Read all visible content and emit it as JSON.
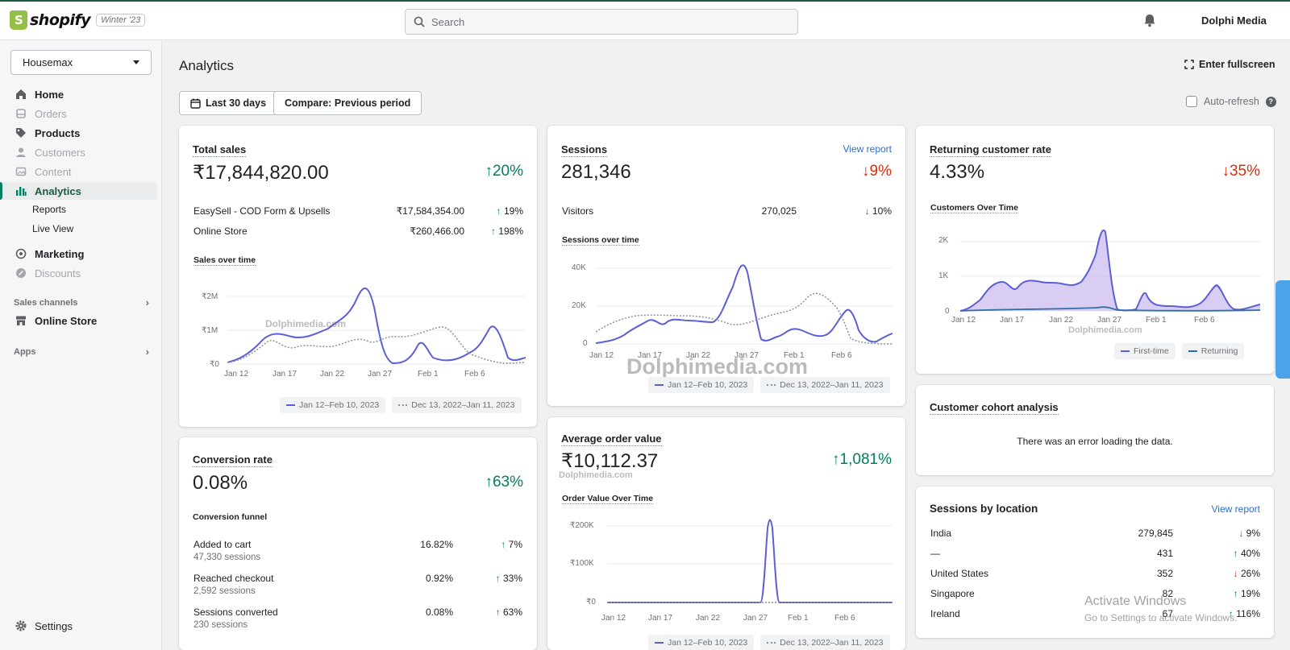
{
  "topbar": {
    "logo_text": "shopify",
    "badge": "Winter '23",
    "search_placeholder": "Search",
    "account_name": "Dolphi Media"
  },
  "sidebar": {
    "store": "Housemax",
    "items": [
      {
        "label": "Home",
        "icon": "home-icon",
        "disabled": false
      },
      {
        "label": "Orders",
        "icon": "orders-icon",
        "disabled": true
      },
      {
        "label": "Products",
        "icon": "tag-icon",
        "disabled": false
      },
      {
        "label": "Customers",
        "icon": "person-icon",
        "disabled": true
      },
      {
        "label": "Content",
        "icon": "image-icon",
        "disabled": true
      },
      {
        "label": "Analytics",
        "icon": "bar-chart-icon",
        "active": true
      }
    ],
    "analytics_sub": [
      "Reports",
      "Live View"
    ],
    "items2": [
      {
        "label": "Marketing",
        "icon": "target-icon",
        "disabled": false
      },
      {
        "label": "Discounts",
        "icon": "discount-icon",
        "disabled": true
      }
    ],
    "sales_channels_label": "Sales channels",
    "online_store": "Online Store",
    "apps_label": "Apps",
    "settings": "Settings"
  },
  "header": {
    "title": "Analytics",
    "fullscreen": "Enter fullscreen",
    "date_range": "Last 30 days",
    "compare": "Compare: Previous period",
    "auto_refresh": "Auto-refresh"
  },
  "total_sales": {
    "title": "Total sales",
    "value": "₹17,844,820.00",
    "delta": "20%",
    "rows": [
      {
        "label": "EasySell - COD Form & Upsells",
        "value": "₹17,584,354.00",
        "delta": "19%"
      },
      {
        "label": "Online Store",
        "value": "₹260,466.00",
        "delta": "198%"
      }
    ],
    "chart_label": "Sales over time",
    "yticks": [
      "₹2M",
      "₹1M",
      "₹0"
    ],
    "xticks": [
      "Jan 12",
      "Jan 17",
      "Jan 22",
      "Jan 27",
      "Feb 1",
      "Feb 6"
    ],
    "legend": [
      "Jan 12–Feb 10, 2023",
      "Dec 13, 2022–Jan 11, 2023"
    ]
  },
  "sessions": {
    "title": "Sessions",
    "link": "View report",
    "value": "281,346",
    "delta": "9%",
    "visitors_label": "Visitors",
    "visitors_value": "270,025",
    "visitors_delta": "10%",
    "chart_label": "Sessions over time",
    "yticks": [
      "40K",
      "20K",
      "0"
    ],
    "xticks": [
      "Jan 12",
      "Jan 17",
      "Jan 22",
      "Jan 27",
      "Feb 1",
      "Feb 6"
    ],
    "legend": [
      "Jan 12–Feb 10, 2023",
      "Dec 13, 2022–Jan 11, 2023"
    ]
  },
  "returning": {
    "title": "Returning customer rate",
    "value": "4.33%",
    "delta": "35%",
    "chart_label": "Customers Over Time",
    "yticks": [
      "2K",
      "1K",
      "0"
    ],
    "xticks": [
      "Jan 12",
      "Jan 17",
      "Jan 22",
      "Jan 27",
      "Feb 1",
      "Feb 6"
    ],
    "legend": [
      "First-time",
      "Returning"
    ]
  },
  "conversion": {
    "title": "Conversion rate",
    "value": "0.08%",
    "delta": "63%",
    "funnel_label": "Conversion funnel",
    "rows": [
      {
        "label": "Added to cart",
        "sub": "47,330 sessions",
        "value": "16.82%",
        "delta": "7%"
      },
      {
        "label": "Reached checkout",
        "sub": "2,592 sessions",
        "value": "0.92%",
        "delta": "33%"
      },
      {
        "label": "Sessions converted",
        "sub": "230 sessions",
        "value": "0.08%",
        "delta": "63%"
      }
    ]
  },
  "aov": {
    "title": "Average order value",
    "value": "₹10,112.37",
    "delta": "1,081%",
    "chart_label": "Order Value Over Time",
    "yticks": [
      "₹200K",
      "₹100K",
      "₹0"
    ],
    "xticks": [
      "Jan 12",
      "Jan 17",
      "Jan 22",
      "Jan 27",
      "Feb 1",
      "Feb 6"
    ],
    "legend": [
      "Jan 12–Feb 10, 2023",
      "Dec 13, 2022–Jan 11, 2023"
    ]
  },
  "cohort": {
    "title": "Customer cohort analysis",
    "message": "There was an error loading the data."
  },
  "location": {
    "title": "Sessions by location",
    "link": "View report",
    "rows": [
      {
        "label": "India",
        "value": "279,845",
        "delta": "9%",
        "dir": "down"
      },
      {
        "label": "—",
        "value": "431",
        "delta": "40%",
        "dir": "up"
      },
      {
        "label": "United States",
        "value": "352",
        "delta": "26%",
        "dir": "down"
      },
      {
        "label": "Singapore",
        "value": "82",
        "delta": "19%",
        "dir": "up"
      },
      {
        "label": "Ireland",
        "value": "67",
        "delta": "116%",
        "dir": "up"
      }
    ]
  },
  "overlay": {
    "watermark_big": "Dolphimedia.com",
    "watermark_small": "Dolphimedia.com",
    "activate_title": "Activate Windows",
    "activate_sub": "Go to Settings to activate Windows."
  },
  "colors": {
    "accent": "#008060",
    "up": "#007f5f",
    "down": "#d82c0d",
    "series_current": "#5c5fd6",
    "series_previous": "#8c9196",
    "link": "#2c6ecb"
  }
}
